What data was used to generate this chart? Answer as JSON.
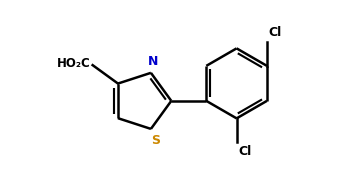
{
  "background_color": "#ffffff",
  "line_color": "#000000",
  "label_color_N": "#0000cc",
  "label_color_S": "#cc8800",
  "label_color_Cl": "#000000",
  "label_color_HO2C": "#000000",
  "line_width": 1.8,
  "figsize": [
    3.61,
    1.87
  ],
  "dpi": 100,
  "xlim": [
    0.0,
    8.5
  ],
  "ylim": [
    0.5,
    5.5
  ]
}
